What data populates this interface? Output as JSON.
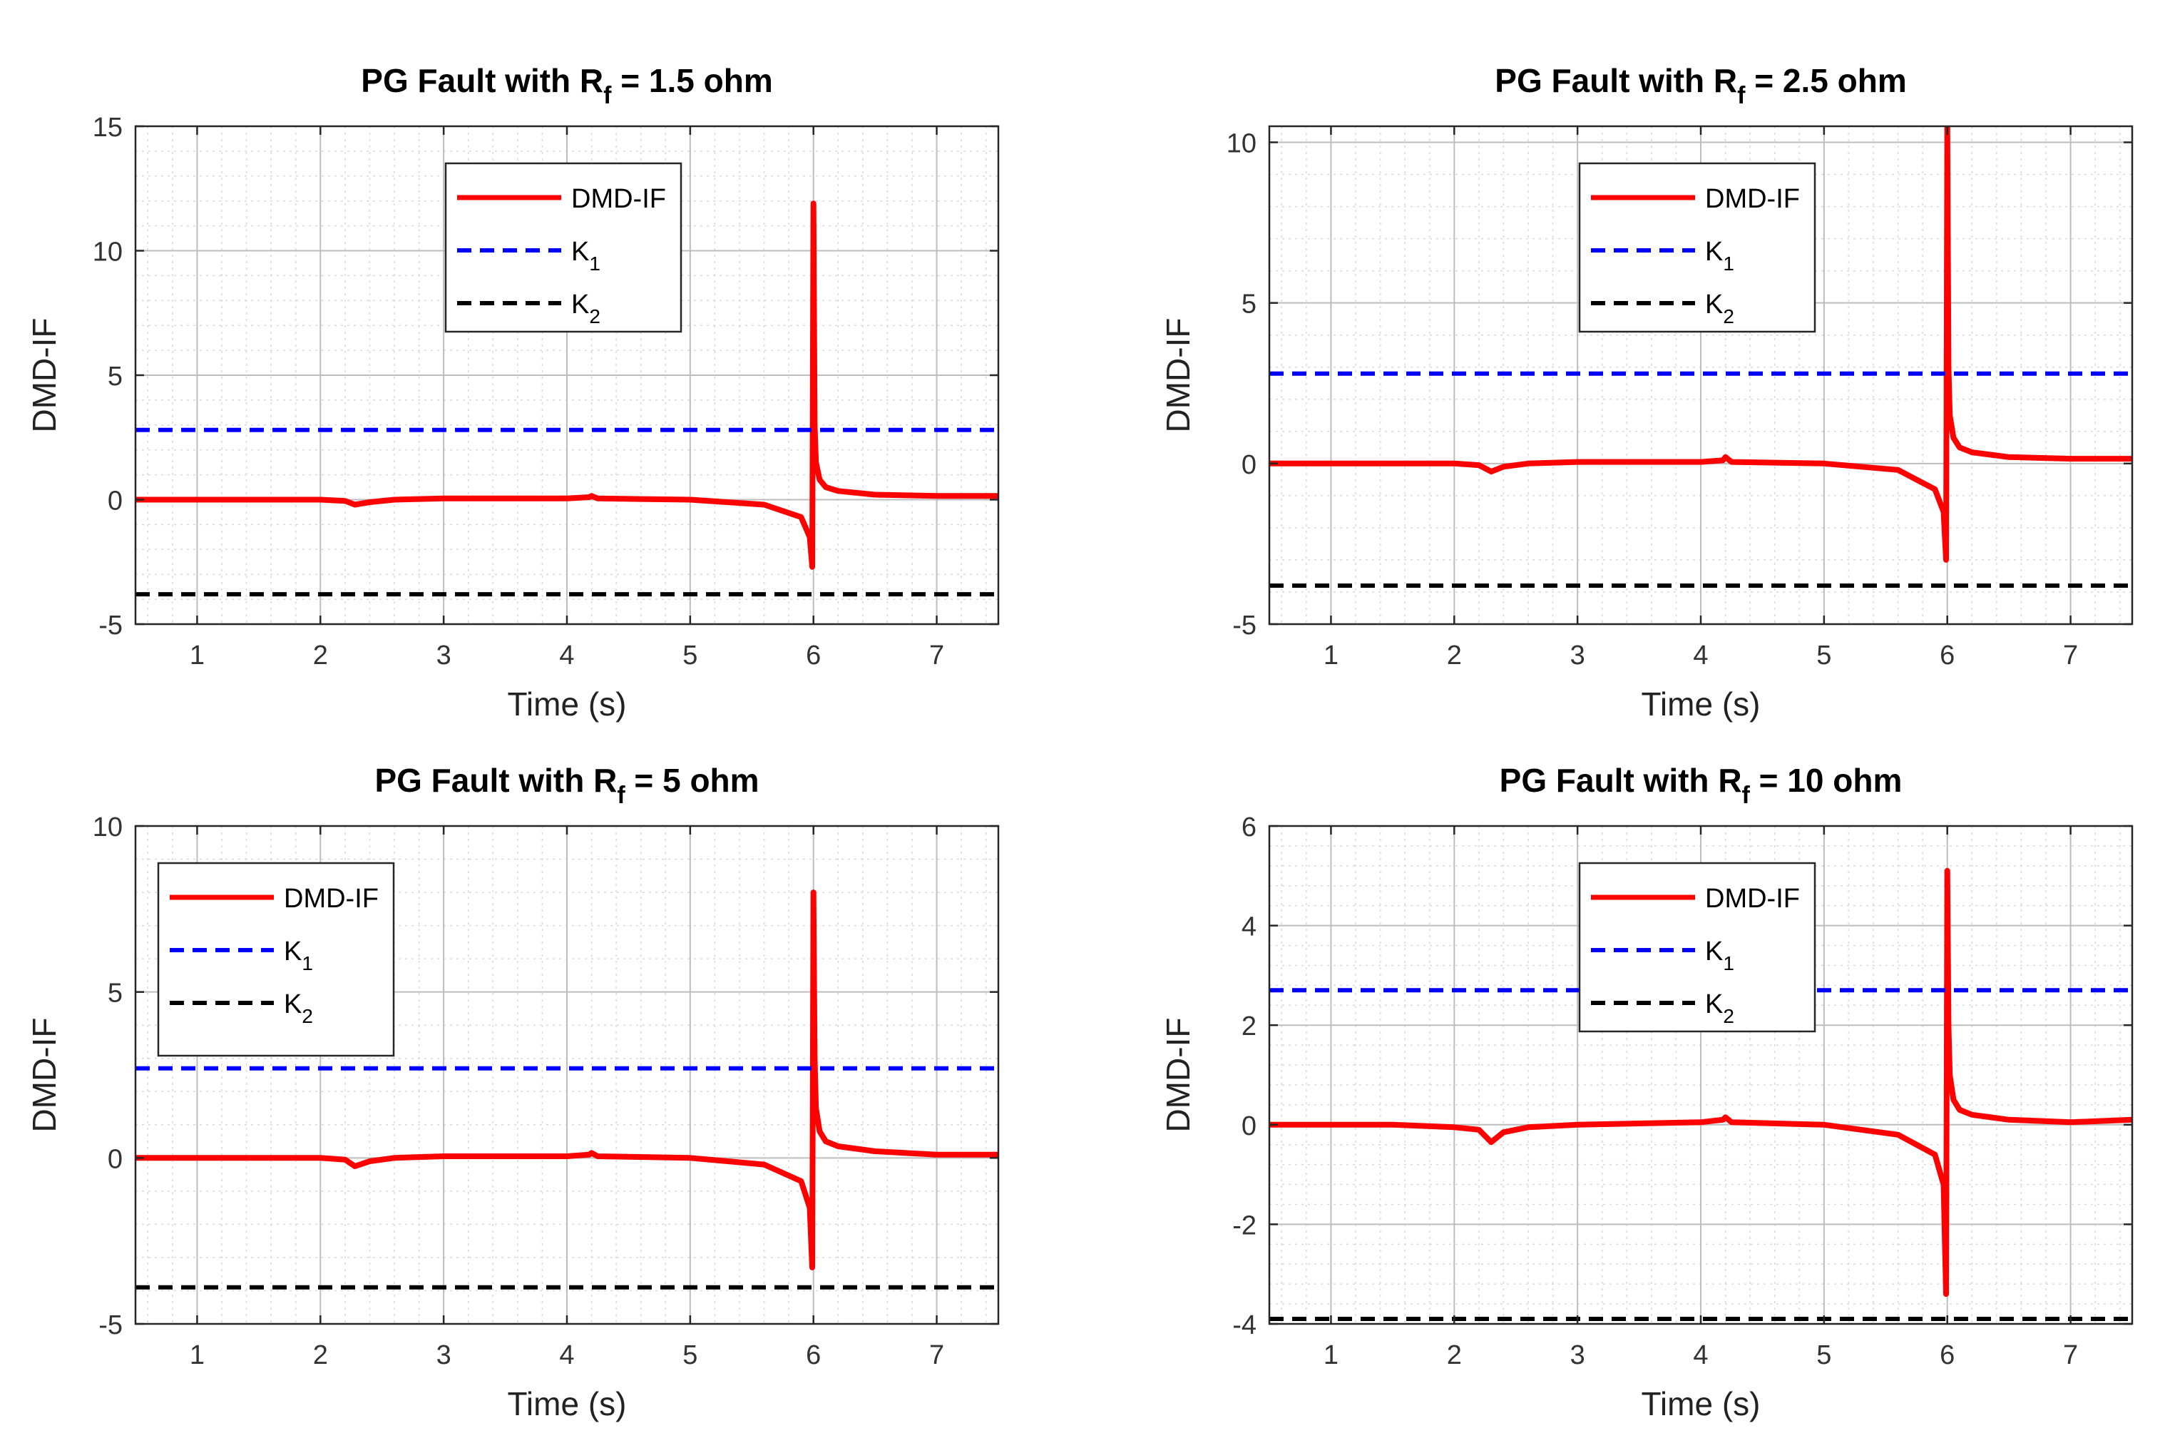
{
  "chart_data": [
    {
      "type": "line",
      "title_main": "PG Fault with R",
      "title_sub": "f",
      "title_tail": " = 1.5 ohm",
      "xlabel": "Time (s)",
      "ylabel": "DMD-IF",
      "xlim": [
        0.5,
        7.5
      ],
      "ylim": [
        -5,
        15
      ],
      "xticks": [
        1,
        2,
        3,
        4,
        5,
        6,
        7
      ],
      "yticks": [
        -5,
        0,
        5,
        10,
        15
      ],
      "grid": true,
      "legend_position": "top-center",
      "legend": [
        {
          "main": "DMD-IF",
          "sub": "",
          "color": "#ff0000",
          "style": "solid"
        },
        {
          "main": "K",
          "sub": "1",
          "color": "#0000ff",
          "style": "dashed"
        },
        {
          "main": "K",
          "sub": "2",
          "color": "#000000",
          "style": "dashed"
        }
      ],
      "series": [
        {
          "name": "DMD-IF",
          "color": "#ff0000",
          "x": [
            0.5,
            1.0,
            1.5,
            2.0,
            2.2,
            2.28,
            2.4,
            2.6,
            3.0,
            4.0,
            4.18,
            4.2,
            4.25,
            5.0,
            5.6,
            5.9,
            5.97,
            5.99,
            6.0,
            6.01,
            6.02,
            6.05,
            6.1,
            6.2,
            6.5,
            7.0,
            7.5
          ],
          "y": [
            0.0,
            0.0,
            0.0,
            0.0,
            -0.05,
            -0.2,
            -0.1,
            0.0,
            0.05,
            0.05,
            0.1,
            0.15,
            0.05,
            0.0,
            -0.2,
            -0.7,
            -1.5,
            -2.7,
            11.9,
            3.0,
            1.5,
            0.8,
            0.5,
            0.35,
            0.2,
            0.15,
            0.15
          ]
        },
        {
          "name": "K1",
          "color": "#0000ff",
          "x": [
            0.5,
            7.5
          ],
          "y": [
            2.8,
            2.8
          ]
        },
        {
          "name": "K2",
          "color": "#000000",
          "x": [
            0.5,
            7.5
          ],
          "y": [
            -3.8,
            -3.8
          ]
        }
      ]
    },
    {
      "type": "line",
      "title_main": "PG Fault with R",
      "title_sub": "f",
      "title_tail": " = 2.5 ohm",
      "xlabel": "Time (s)",
      "ylabel": "DMD-IF",
      "xlim": [
        0.5,
        7.5
      ],
      "ylim": [
        -5,
        10.5
      ],
      "xticks": [
        1,
        2,
        3,
        4,
        5,
        6,
        7
      ],
      "yticks": [
        -5,
        0,
        5,
        10
      ],
      "grid": true,
      "legend_position": "top-center",
      "legend": [
        {
          "main": "DMD-IF",
          "sub": "",
          "color": "#ff0000",
          "style": "solid"
        },
        {
          "main": "K",
          "sub": "1",
          "color": "#0000ff",
          "style": "dashed"
        },
        {
          "main": "K",
          "sub": "2",
          "color": "#000000",
          "style": "dashed"
        }
      ],
      "series": [
        {
          "name": "DMD-IF",
          "color": "#ff0000",
          "x": [
            0.5,
            1.0,
            1.5,
            2.0,
            2.2,
            2.3,
            2.4,
            2.6,
            3.0,
            4.0,
            4.18,
            4.2,
            4.25,
            5.0,
            5.6,
            5.9,
            5.97,
            5.99,
            6.0,
            6.01,
            6.02,
            6.05,
            6.1,
            6.2,
            6.5,
            7.0,
            7.5
          ],
          "y": [
            0.0,
            0.0,
            0.0,
            0.0,
            -0.05,
            -0.25,
            -0.1,
            0.0,
            0.05,
            0.05,
            0.1,
            0.2,
            0.05,
            0.0,
            -0.2,
            -0.8,
            -1.5,
            -3.0,
            10.5,
            3.0,
            1.5,
            0.8,
            0.5,
            0.35,
            0.2,
            0.15,
            0.15
          ]
        },
        {
          "name": "K1",
          "color": "#0000ff",
          "x": [
            0.5,
            7.5
          ],
          "y": [
            2.8,
            2.8
          ]
        },
        {
          "name": "K2",
          "color": "#000000",
          "x": [
            0.5,
            7.5
          ],
          "y": [
            -3.8,
            -3.8
          ]
        }
      ]
    },
    {
      "type": "line",
      "title_main": "PG Fault with R",
      "title_sub": "f",
      "title_tail": " = 5 ohm",
      "xlabel": "Time (s)",
      "ylabel": "DMD-IF",
      "xlim": [
        0.5,
        7.5
      ],
      "ylim": [
        -5,
        10
      ],
      "xticks": [
        1,
        2,
        3,
        4,
        5,
        6,
        7
      ],
      "yticks": [
        -5,
        0,
        5,
        10
      ],
      "grid": true,
      "legend_position": "top-left",
      "legend": [
        {
          "main": "DMD-IF",
          "sub": "",
          "color": "#ff0000",
          "style": "solid"
        },
        {
          "main": "K",
          "sub": "1",
          "color": "#0000ff",
          "style": "dashed"
        },
        {
          "main": "K",
          "sub": "2",
          "color": "#000000",
          "style": "dashed"
        }
      ],
      "series": [
        {
          "name": "DMD-IF",
          "color": "#ff0000",
          "x": [
            0.5,
            1.0,
            1.5,
            2.0,
            2.2,
            2.28,
            2.4,
            2.6,
            3.0,
            4.0,
            4.18,
            4.2,
            4.25,
            5.0,
            5.6,
            5.9,
            5.97,
            5.99,
            6.0,
            6.01,
            6.02,
            6.05,
            6.1,
            6.2,
            6.5,
            7.0,
            7.5
          ],
          "y": [
            0.0,
            0.0,
            0.0,
            0.0,
            -0.05,
            -0.25,
            -0.1,
            0.0,
            0.05,
            0.05,
            0.1,
            0.15,
            0.05,
            0.0,
            -0.2,
            -0.7,
            -1.5,
            -3.3,
            8.0,
            3.0,
            1.5,
            0.8,
            0.5,
            0.35,
            0.2,
            0.1,
            0.1
          ]
        },
        {
          "name": "K1",
          "color": "#0000ff",
          "x": [
            0.5,
            7.5
          ],
          "y": [
            2.7,
            2.7
          ]
        },
        {
          "name": "K2",
          "color": "#000000",
          "x": [
            0.5,
            7.5
          ],
          "y": [
            -3.9,
            -3.9
          ]
        }
      ]
    },
    {
      "type": "line",
      "title_main": "PG Fault with R",
      "title_sub": "f",
      "title_tail": " = 10 ohm",
      "xlabel": "Time (s)",
      "ylabel": "DMD-IF",
      "xlim": [
        0.5,
        7.5
      ],
      "ylim": [
        -4,
        6
      ],
      "xticks": [
        1,
        2,
        3,
        4,
        5,
        6,
        7
      ],
      "yticks": [
        -4,
        -2,
        0,
        2,
        4,
        6
      ],
      "grid": true,
      "legend_position": "top-center",
      "legend": [
        {
          "main": "DMD-IF",
          "sub": "",
          "color": "#ff0000",
          "style": "solid"
        },
        {
          "main": "K",
          "sub": "1",
          "color": "#0000ff",
          "style": "dashed"
        },
        {
          "main": "K",
          "sub": "2",
          "color": "#000000",
          "style": "dashed"
        }
      ],
      "series": [
        {
          "name": "DMD-IF",
          "color": "#ff0000",
          "x": [
            0.5,
            1.0,
            1.5,
            2.0,
            2.2,
            2.3,
            2.4,
            2.6,
            3.0,
            4.0,
            4.18,
            4.2,
            4.25,
            5.0,
            5.6,
            5.9,
            5.97,
            5.99,
            6.0,
            6.01,
            6.02,
            6.05,
            6.1,
            6.2,
            6.5,
            7.0,
            7.5
          ],
          "y": [
            0.0,
            0.0,
            0.0,
            -0.05,
            -0.1,
            -0.35,
            -0.15,
            -0.05,
            0.0,
            0.05,
            0.1,
            0.15,
            0.05,
            0.0,
            -0.2,
            -0.6,
            -1.2,
            -3.4,
            5.1,
            2.0,
            1.0,
            0.5,
            0.3,
            0.2,
            0.1,
            0.05,
            0.1
          ]
        },
        {
          "name": "K1",
          "color": "#0000ff",
          "x": [
            0.5,
            7.5
          ],
          "y": [
            2.7,
            2.7
          ]
        },
        {
          "name": "K2",
          "color": "#000000",
          "x": [
            0.5,
            7.5
          ],
          "y": [
            -3.9,
            -3.9
          ]
        }
      ]
    }
  ]
}
